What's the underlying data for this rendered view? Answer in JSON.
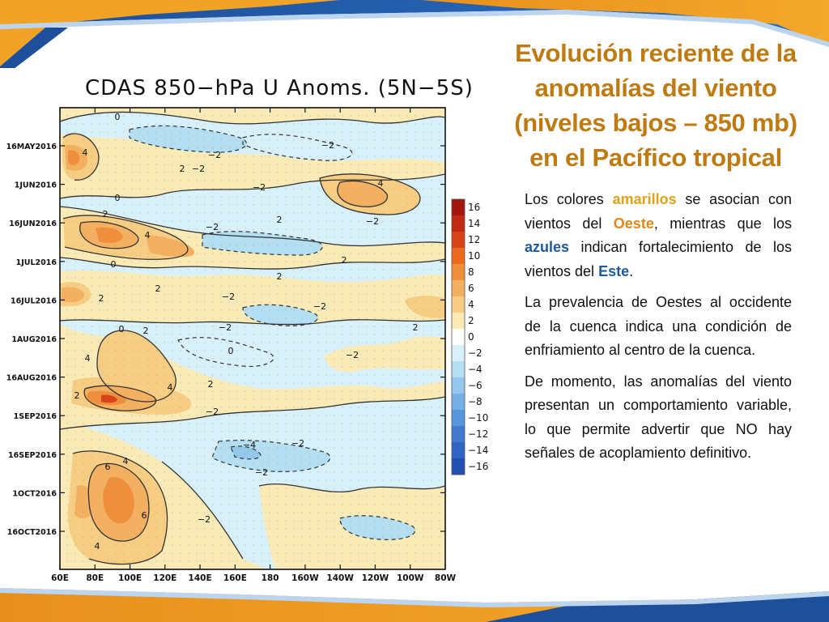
{
  "slide": {
    "title_lines": [
      "Evolución reciente de la",
      "anomalías del viento",
      "(niveles bajos – 850 mb)",
      "en el Pacífico tropical"
    ],
    "paragraph1": {
      "t1": "Los colores ",
      "hl1": "amarillos",
      "t2": " se asocian con vientos del ",
      "hl2": "Oeste",
      "t3": ", mientras que los ",
      "hl3": "azules",
      "t4": " indican fortalecimiento de los vientos del ",
      "hl4": "Este",
      "t5": "."
    },
    "paragraph2": "La prevalencia de Oestes al occidente de la cuenca indica una condición de enfriamiento al centro de la cuenca.",
    "paragraph3": "De momento, las anomalías del viento presentan un comportamiento variable, lo que permite advertir que NO hay señales de acoplamiento definitivo."
  },
  "chart_data": {
    "type": "heatmap",
    "title": "CDAS 850−hPa U Anoms. (5N−5S)",
    "x_tick_labels": [
      "60E",
      "80E",
      "100E",
      "120E",
      "140E",
      "160E",
      "180",
      "160W",
      "140W",
      "120W",
      "100W",
      "80W"
    ],
    "y_tick_labels": [
      "16MAY2016",
      "1JUN2016",
      "16JUN2016",
      "1JUL2016",
      "16JUL2016",
      "1AUG2016",
      "16AUG2016",
      "1SEP2016",
      "16SEP2016",
      "1OCT2016",
      "16OCT2016"
    ],
    "colorbar": {
      "levels": [
        "16",
        "14",
        "12",
        "10",
        "8",
        "6",
        "4",
        "2",
        "0",
        "−2",
        "−4",
        "−6",
        "−8",
        "−10",
        "−12",
        "−14",
        "−16"
      ],
      "colors": [
        "#a3160e",
        "#c02a12",
        "#d8431a",
        "#ec6a1e",
        "#f08f3b",
        "#f3b060",
        "#f7cd83",
        "#faeab5",
        "#ffffff",
        "#d8f0fa",
        "#b4def2",
        "#93c8ec",
        "#74b0e4",
        "#5896dc",
        "#437ad0",
        "#3165c4",
        "#2150b5"
      ]
    },
    "contour_labels": [
      {
        "text": "0"
      },
      {
        "text": "−2"
      },
      {
        "text": "−2"
      },
      {
        "text": "4"
      },
      {
        "text": "−2"
      },
      {
        "text": "2"
      },
      {
        "text": "−2"
      },
      {
        "text": "0"
      },
      {
        "text": "4"
      },
      {
        "text": "2"
      },
      {
        "text": "−2"
      },
      {
        "text": "−2"
      },
      {
        "text": "2"
      },
      {
        "text": "4"
      },
      {
        "text": "0"
      },
      {
        "text": "2"
      },
      {
        "text": "2"
      },
      {
        "text": "−2"
      },
      {
        "text": "2"
      },
      {
        "text": "−2"
      },
      {
        "text": "0"
      },
      {
        "text": "4"
      },
      {
        "text": "2"
      },
      {
        "text": "2"
      },
      {
        "text": "−2"
      },
      {
        "text": "0"
      },
      {
        "text": "−2"
      },
      {
        "text": "2"
      },
      {
        "text": "4"
      },
      {
        "text": "−4"
      },
      {
        "text": "−2"
      },
      {
        "text": "4"
      },
      {
        "text": "2"
      },
      {
        "text": "6"
      },
      {
        "text": "−2"
      },
      {
        "text": "−2"
      },
      {
        "text": "6"
      },
      {
        "text": "4"
      },
      {
        "text": "2"
      },
      {
        "text": "−2"
      }
    ],
    "features": [
      {
        "lon": 75,
        "date": "2016-05-20",
        "value": 4
      },
      {
        "lon": 90,
        "date": "2016-06-18",
        "value": 6
      },
      {
        "lon": 125,
        "date": "2016-06-25",
        "value": 4
      },
      {
        "lon": 70,
        "date": "2016-07-12",
        "value": 6
      },
      {
        "lon": 90,
        "date": "2016-08-27",
        "value": 8
      },
      {
        "lon": 110,
        "date": "2016-08-20",
        "value": 4
      },
      {
        "lon": 90,
        "date": "2016-09-28",
        "value": 6
      },
      {
        "lon": 110,
        "date": "2016-10-12",
        "value": 6
      },
      {
        "lon": 240,
        "date": "2016-05-30",
        "value": 4
      },
      {
        "lon": 195,
        "date": "2016-07-08",
        "value": 2
      },
      {
        "lon": 170,
        "date": "2016-09-16",
        "value": -4
      },
      {
        "lon": 195,
        "date": "2016-09-26",
        "value": -2
      },
      {
        "lon": 155,
        "date": "2016-06-22",
        "value": -2
      },
      {
        "lon": 175,
        "date": "2016-05-22",
        "value": -2
      },
      {
        "lon": 245,
        "date": "2016-08-10",
        "value": -2
      },
      {
        "lon": 270,
        "date": "2016-10-20",
        "value": 2
      }
    ]
  }
}
